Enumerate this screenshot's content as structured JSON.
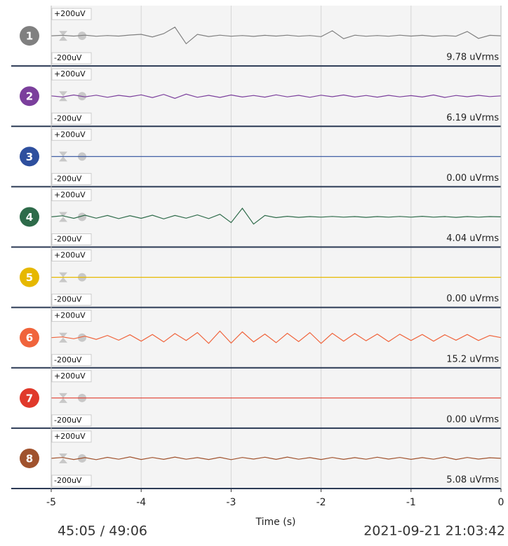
{
  "chart_data": {
    "type": "line",
    "xlabel": "Time (s)",
    "x": [
      -5,
      -4.875,
      -4.75,
      -4.625,
      -4.5,
      -4.375,
      -4.25,
      -4.125,
      -4,
      -3.875,
      -3.75,
      -3.625,
      -3.5,
      -3.375,
      -3.25,
      -3.125,
      -3,
      -2.875,
      -2.75,
      -2.625,
      -2.5,
      -2.375,
      -2.25,
      -2.125,
      -2,
      -1.875,
      -1.75,
      -1.625,
      -1.5,
      -1.375,
      -1.25,
      -1.125,
      -1,
      -0.875,
      -0.75,
      -0.625,
      -0.5,
      -0.375,
      -0.25,
      -0.125,
      0
    ],
    "xlim": [
      -5,
      0
    ],
    "xticks": [
      -5,
      -4,
      -3,
      -2,
      -1,
      0
    ],
    "ylim": [
      -200,
      200
    ],
    "yticks": [
      {
        "value": 200,
        "label": "+200uV"
      },
      {
        "value": -200,
        "label": "-200uV"
      }
    ],
    "grid": true,
    "series": [
      {
        "name": "1",
        "color": "#808080",
        "rms": "9.78 uVrms",
        "values": [
          0,
          3,
          -2,
          4,
          -3,
          2,
          -2,
          5,
          10,
          -8,
          15,
          60,
          -55,
          10,
          -5,
          4,
          -3,
          2,
          -4,
          3,
          -2,
          4,
          -3,
          2,
          -6,
          35,
          -20,
          4,
          -3,
          2,
          -3,
          4,
          -2,
          3,
          -4,
          2,
          -3,
          30,
          -18,
          3,
          0
        ]
      },
      {
        "name": "2",
        "color": "#7b3f9c",
        "rms": "6.19 uVrms",
        "values": [
          2,
          -6,
          8,
          -5,
          7,
          -8,
          6,
          -4,
          9,
          -10,
          12,
          -15,
          14,
          -8,
          6,
          -9,
          8,
          -6,
          5,
          -7,
          9,
          -5,
          6,
          -8,
          7,
          -4,
          8,
          -6,
          5,
          -7,
          6,
          -5,
          4,
          -6,
          8,
          -9,
          5,
          -4,
          6,
          -3,
          2
        ]
      },
      {
        "name": "3",
        "color": "#2e4f9e",
        "rms": "0.00 uVrms",
        "values": [
          0,
          0,
          0,
          0,
          0,
          0,
          0,
          0,
          0,
          0,
          0,
          0,
          0,
          0,
          0,
          0,
          0,
          0,
          0,
          0,
          0,
          0,
          0,
          0,
          0,
          0,
          0,
          0,
          0,
          0,
          0,
          0,
          0,
          0,
          0,
          0,
          0,
          0,
          0,
          0,
          0
        ]
      },
      {
        "name": "4",
        "color": "#2e6b4a",
        "rms": "4.04 uVrms",
        "values": [
          0,
          8,
          -10,
          12,
          -9,
          10,
          -12,
          8,
          -10,
          12,
          -14,
          10,
          -9,
          14,
          -12,
          18,
          -40,
          60,
          -50,
          10,
          -5,
          4,
          -3,
          2,
          -2,
          3,
          -2,
          2,
          -3,
          2,
          -2,
          3,
          -2,
          4,
          -2,
          2,
          -3,
          2,
          -2,
          2,
          0
        ]
      },
      {
        "name": "5",
        "color": "#e6b800",
        "rms": "0.00 uVrms",
        "values": [
          0,
          0,
          0,
          0,
          0,
          0,
          0,
          0,
          0,
          0,
          0,
          0,
          0,
          0,
          0,
          0,
          0,
          0,
          0,
          0,
          0,
          0,
          0,
          0,
          0,
          0,
          0,
          0,
          0,
          0,
          0,
          0,
          0,
          0,
          0,
          0,
          0,
          0,
          0,
          0,
          0
        ]
      },
      {
        "name": "6",
        "color": "#f0643c",
        "rms": "15.2 uVrms",
        "values": [
          0,
          5,
          -8,
          10,
          -12,
          15,
          -18,
          20,
          -25,
          22,
          -30,
          28,
          -20,
          35,
          -40,
          45,
          -38,
          40,
          -30,
          25,
          -35,
          30,
          -28,
          35,
          -40,
          30,
          -25,
          28,
          -22,
          25,
          -28,
          24,
          -20,
          22,
          -25,
          20,
          -18,
          22,
          -20,
          15,
          0
        ]
      },
      {
        "name": "7",
        "color": "#e0392b",
        "rms": "0.00 uVrms",
        "values": [
          0,
          0,
          0,
          0,
          0,
          0,
          0,
          0,
          0,
          0,
          0,
          0,
          0,
          0,
          0,
          0,
          0,
          0,
          0,
          0,
          0,
          0,
          0,
          0,
          0,
          0,
          0,
          0,
          0,
          0,
          0,
          0,
          0,
          0,
          0,
          0,
          0,
          0,
          0,
          0,
          0
        ]
      },
      {
        "name": "8",
        "color": "#a0522d",
        "rms": "5.08 uVrms",
        "values": [
          0,
          6,
          -8,
          5,
          -9,
          7,
          -6,
          10,
          -8,
          6,
          -7,
          9,
          -6,
          5,
          -8,
          7,
          -9,
          6,
          -5,
          8,
          -7,
          9,
          -6,
          5,
          -8,
          6,
          -7,
          5,
          -6,
          8,
          -5,
          6,
          -7,
          5,
          -6,
          9,
          -8,
          6,
          -5,
          4,
          0
        ]
      }
    ]
  },
  "footer": {
    "elapsed": "45:05 / 49:06",
    "timestamp": "2021-09-21 21:03:42"
  }
}
